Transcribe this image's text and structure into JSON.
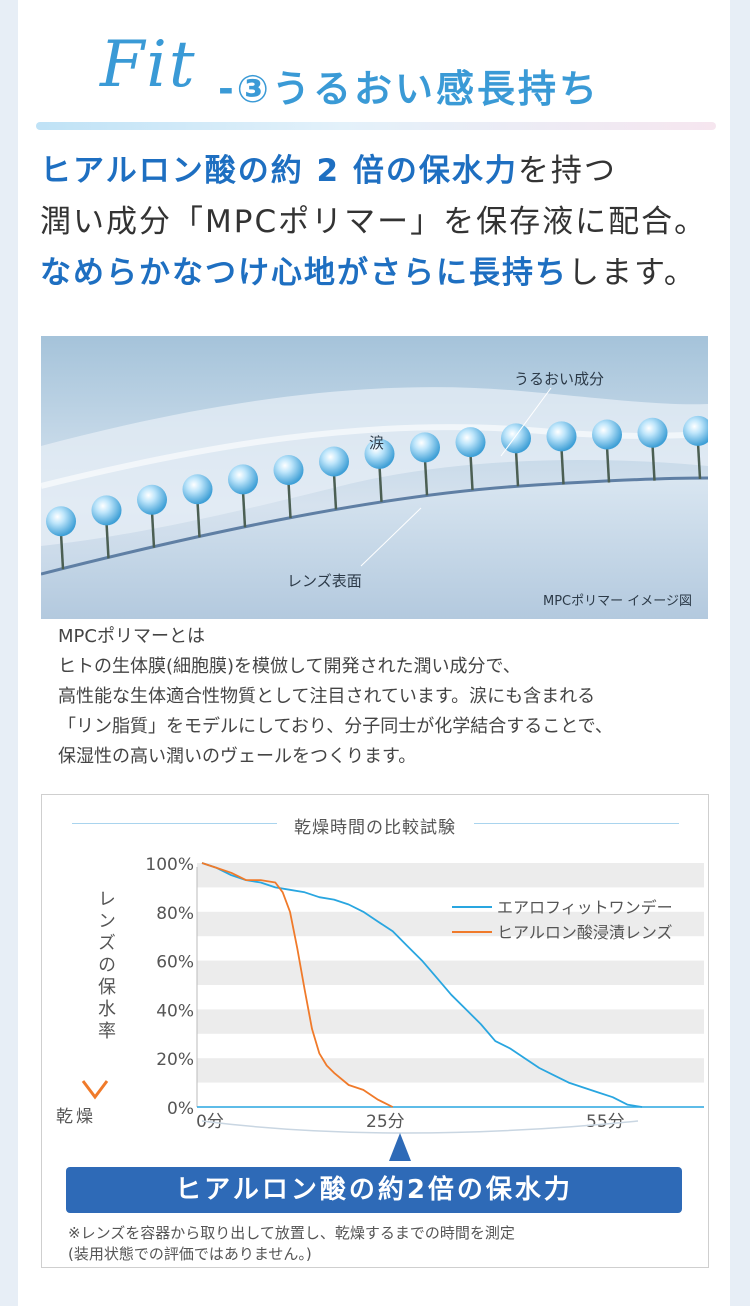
{
  "header": {
    "logo_text": "Fit",
    "title": "-③うるおい感長持ち"
  },
  "lead": {
    "line1_highlight": "ヒアルロン酸の約 2 倍の保水力",
    "line1_rest": "を持つ",
    "line2": "潤い成分「MPCポリマー」を保存液に配合。",
    "line3_highlight": "なめらかなつけ心地がさらに長持ち",
    "line3_rest": "します。"
  },
  "illustration": {
    "label_moisture": "うるおい成分",
    "label_tear": "涙",
    "label_lens_surface": "レンズ表面",
    "caption": "MPCポリマー イメージ図"
  },
  "description": {
    "lines": [
      "MPCポリマーとは",
      "ヒトの生体膜(細胞膜)を模倣して開発された潤い成分で、",
      "高性能な生体適合性物質として注目されています。涙にも含まれる",
      "「リン脂質」をモデルにしており、分子同士が化学結合することで、",
      "保湿性の高い潤いのヴェールをつくります。"
    ]
  },
  "chart_data": {
    "type": "line",
    "title": "乾燥時間の比較試験",
    "ylabel": "レンズの保水率",
    "ylabel_bottom": "乾燥",
    "y_ticks": [
      "100%",
      "80%",
      "60%",
      "40%",
      "20%",
      "0%"
    ],
    "x_ticks": [
      "0分",
      "25分",
      "55分"
    ],
    "xlim": [
      0,
      60
    ],
    "ylim": [
      0,
      100
    ],
    "grid": "horizontal-bands",
    "legend_position": "top-right",
    "series": [
      {
        "name": "エアロフィットワンデー",
        "color": "#29a6e0",
        "x": [
          0,
          2,
          4,
          6,
          8,
          10,
          12,
          14,
          16,
          18,
          20,
          22,
          24,
          26,
          28,
          30,
          32,
          34,
          36,
          38,
          40,
          42,
          44,
          46,
          48,
          50,
          52,
          54,
          56,
          58,
          60
        ],
        "y": [
          100,
          98,
          95,
          93,
          92,
          90,
          89,
          88,
          86,
          85,
          83,
          80,
          76,
          72,
          66,
          60,
          53,
          46,
          40,
          34,
          27,
          24,
          20,
          16,
          13,
          10,
          8,
          6,
          4,
          1,
          0
        ]
      },
      {
        "name": "ヒアルロン酸浸漬レンズ",
        "color": "#f07a2a",
        "x": [
          0,
          2,
          4,
          6,
          8,
          10,
          11,
          12,
          13,
          14,
          15,
          16,
          17,
          18,
          20,
          22,
          24,
          26
        ],
        "y": [
          100,
          98,
          96,
          93,
          93,
          92,
          88,
          80,
          65,
          48,
          32,
          22,
          17,
          14,
          9,
          7,
          3,
          0
        ]
      }
    ]
  },
  "banner": {
    "text": "ヒアルロン酸の約2倍の保水力"
  },
  "footnote": {
    "line1": "※レンズを容器から取り出して放置し、乾燥するまでの時間を測定",
    "line2": "(装用状態での評価ではありません。)"
  },
  "colors": {
    "accent": "#1e6fc1",
    "brand_blue": "#3a9ad6",
    "banner": "#2e6ab7",
    "series_blue": "#29a6e0",
    "series_orange": "#f07a2a"
  }
}
